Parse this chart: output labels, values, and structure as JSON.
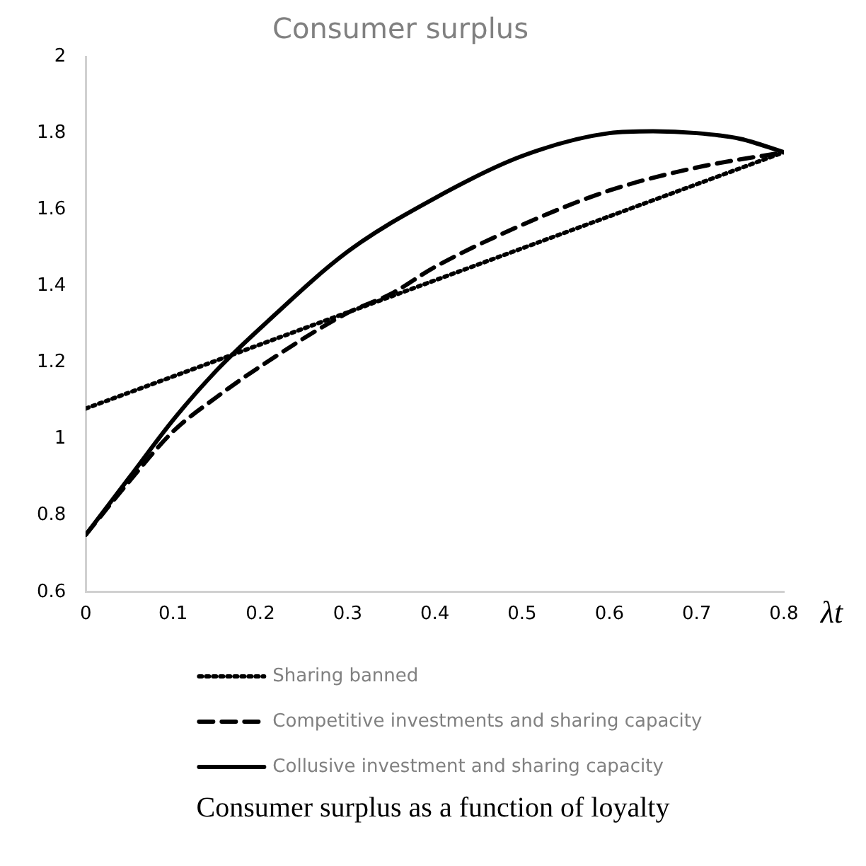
{
  "chart_data": {
    "type": "line",
    "title": "Consumer surplus",
    "xlabel": "λt",
    "annotations": [
      "Consumer surplus as a function of loyalty"
    ],
    "xlim": [
      0,
      0.8
    ],
    "xticks": [
      0,
      0.1,
      0.2,
      0.3,
      0.4,
      0.5,
      0.6,
      0.7,
      0.8
    ],
    "ylim": [
      0.6,
      2
    ],
    "yticks": [
      0.6,
      0.8,
      1,
      1.2,
      1.4,
      1.6,
      1.8,
      2
    ],
    "grid": false,
    "legend": "bottom",
    "marker": "none",
    "series": [
      {
        "name": "Sharing banned",
        "color": "#000000",
        "line_style": "dotted",
        "x": [
          0,
          0.8
        ],
        "values": [
          1.08,
          1.75
        ]
      },
      {
        "name": "Competitive investments and sharing capacity",
        "color": "#000000",
        "line_style": "dashed",
        "x": [
          0,
          0.05,
          0.1,
          0.15,
          0.2,
          0.3,
          0.35,
          0.4,
          0.5,
          0.6,
          0.7,
          0.8
        ],
        "values": [
          0.75,
          0.89,
          1.02,
          1.11,
          1.19,
          1.33,
          1.38,
          1.45,
          1.56,
          1.65,
          1.71,
          1.75
        ]
      },
      {
        "name": "Collusive investment and sharing capacity",
        "color": "#000000",
        "line_style": "solid",
        "x": [
          0,
          0.05,
          0.1,
          0.15,
          0.2,
          0.3,
          0.4,
          0.5,
          0.6,
          0.65,
          0.7,
          0.75,
          0.8
        ],
        "values": [
          0.75,
          0.9,
          1.05,
          1.18,
          1.29,
          1.49,
          1.63,
          1.74,
          1.8,
          1.805,
          1.8,
          1.785,
          1.75
        ]
      }
    ]
  }
}
